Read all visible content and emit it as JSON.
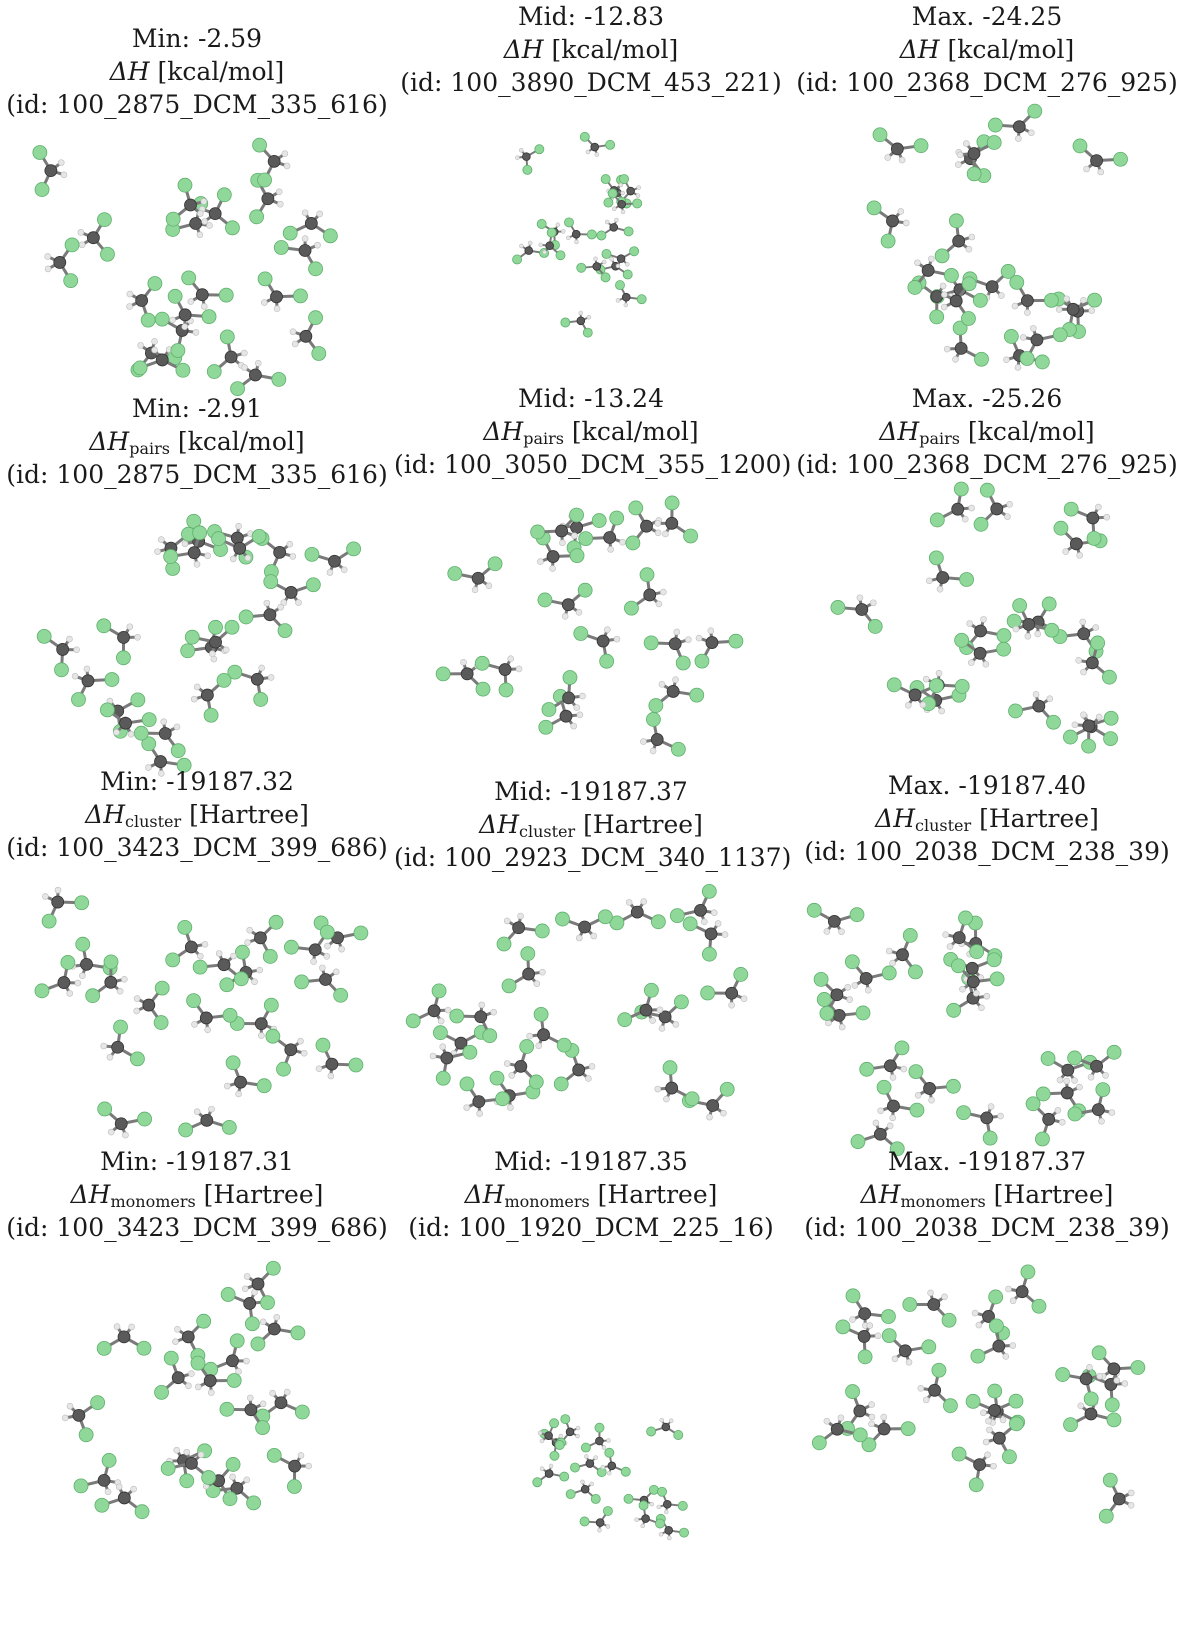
{
  "colors": {
    "chlorine": "#8fd89a",
    "chlorine_edge": "#5fb06c",
    "carbon": "#5a5a5a",
    "carbon_edge": "#333333",
    "hydrogen": "#e6e6e6",
    "bond": "#7a7a7a"
  },
  "panels": [
    {
      "stat": "Min: -2.59",
      "quantity": "ΔH",
      "sub": "",
      "unit": " [kcal/mol]",
      "id": "(id: 100_2875_DCM_335_616)",
      "spread": "wide",
      "seed": 11
    },
    {
      "stat": "Mid: -12.83",
      "quantity": "ΔH",
      "sub": "",
      "unit": " [kcal/mol]",
      "id": "(id: 100_3890_DCM_453_221)",
      "spread": "narrow",
      "seed": 23
    },
    {
      "stat": "Max. -24.25",
      "quantity": "ΔH",
      "sub": "",
      "unit": " [kcal/mol]",
      "id": "(id: 100_2368_DCM_276_925)",
      "spread": "medium",
      "seed": 37
    },
    {
      "stat": "Min: -2.91",
      "quantity": "ΔH",
      "sub": "pairs",
      "unit": " [kcal/mol]",
      "id": "(id: 100_2875_DCM_335_616)",
      "spread": "wide",
      "seed": 41
    },
    {
      "stat": "Mid: -13.24",
      "quantity": "ΔH",
      "sub": "pairs",
      "unit": " [kcal/mol]",
      "id": "(id: 100_3050_DCM_355_1200)",
      "spread": "medium",
      "seed": 53
    },
    {
      "stat": "Max. -25.26",
      "quantity": "ΔH",
      "sub": "pairs",
      "unit": " [kcal/mol]",
      "id": "(id: 100_2368_DCM_276_925)",
      "spread": "medium",
      "seed": 67
    },
    {
      "stat": "Min: -19187.32",
      "quantity": "ΔH",
      "sub": "cluster",
      "unit": " [Hartree]",
      "id": "(id: 100_3423_DCM_399_686)",
      "spread": "wide",
      "seed": 71
    },
    {
      "stat": "Mid: -19187.37",
      "quantity": "ΔH",
      "sub": "cluster",
      "unit": " [Hartree]",
      "id": "(id: 100_2923_DCM_340_1137)",
      "spread": "wide",
      "seed": 83
    },
    {
      "stat": "Max. -19187.40",
      "quantity": "ΔH",
      "sub": "cluster",
      "unit": " [Hartree]",
      "id": "(id: 100_2038_DCM_238_39)",
      "spread": "wide",
      "seed": 97
    },
    {
      "stat": "Min: -19187.31",
      "quantity": "ΔH",
      "sub": "monomers",
      "unit": " [Hartree]",
      "id": "(id: 100_3423_DCM_399_686)",
      "spread": "medium",
      "seed": 101
    },
    {
      "stat": "Mid: -19187.35",
      "quantity": "ΔH",
      "sub": "monomers",
      "unit": " [Hartree]",
      "id": "(id: 100_1920_DCM_225_16)",
      "spread": "bottom",
      "seed": 113
    },
    {
      "stat": "Max. -19187.37",
      "quantity": "ΔH",
      "sub": "monomers",
      "unit": " [Hartree]",
      "id": "(id: 100_2038_DCM_238_39)",
      "spread": "wide",
      "seed": 127
    }
  ]
}
